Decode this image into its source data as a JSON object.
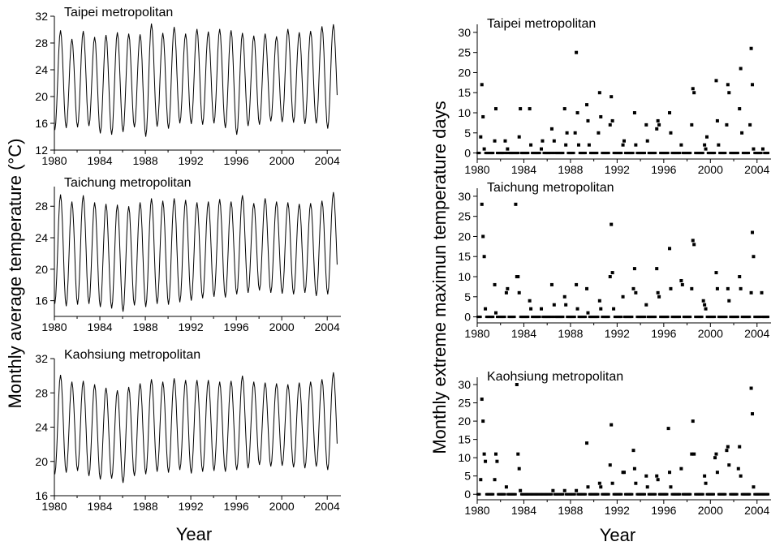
{
  "figure": {
    "left_ylabel": "Monthly average temperature (°C)",
    "right_ylabel": "Monthly extreme maximun temperature days",
    "left_xlabel": "Year",
    "right_xlabel": "Year"
  },
  "chart_data": [
    {
      "type": "line",
      "title": "Taipei metropolitan",
      "xlabel": "Year",
      "ylabel": "Monthly average temperature (°C)",
      "xlim": [
        1980,
        2005.2
      ],
      "ylim": [
        12,
        32
      ],
      "xticks": [
        1980,
        1984,
        1988,
        1992,
        1996,
        2000,
        2004
      ],
      "yticks": [
        12,
        16,
        20,
        24,
        28,
        32
      ],
      "series": [
        {
          "values_description_free": true,
          "annual_summer_peaks": [
            29.9,
            28.6,
            29.8,
            28.9,
            29.2,
            29.6,
            29.4,
            29.3,
            30.9,
            29.5,
            30.4,
            29.4,
            30.1,
            29.7,
            30.1,
            29.9,
            29.5,
            29.1,
            29.4,
            29.0,
            30.1,
            29.6,
            29.8,
            30.5,
            30.8,
            29.7
          ],
          "annual_winter_lows": [
            15.0,
            15.3,
            15.4,
            15.6,
            14.5,
            14.3,
            14.7,
            15.4,
            14.0,
            15.5,
            15.2,
            16.0,
            15.9,
            15.8,
            16.0,
            15.3,
            14.3,
            15.6,
            15.8,
            16.3,
            16.2,
            16.1,
            15.9,
            16.0,
            15.2,
            16.7
          ]
        }
      ]
    },
    {
      "type": "line",
      "title": "Taichung metropolitan",
      "xlabel": "Year",
      "ylabel": "Monthly average temperature (°C)",
      "xlim": [
        1980,
        2005.2
      ],
      "ylim": [
        14,
        30.5
      ],
      "xticks": [
        1980,
        1984,
        1988,
        1992,
        1996,
        2000,
        2004
      ],
      "yticks": [
        16,
        20,
        24,
        28
      ],
      "series": [
        {
          "annual_summer_peaks": [
            29.5,
            28.6,
            29.4,
            28.5,
            28.3,
            28.2,
            28.0,
            28.5,
            29.0,
            28.7,
            29.0,
            28.8,
            28.5,
            28.6,
            28.9,
            28.6,
            29.4,
            28.4,
            29.0,
            28.6,
            28.5,
            28.3,
            28.4,
            28.7,
            29.8,
            29.0
          ],
          "annual_winter_lows": [
            15.6,
            15.3,
            15.5,
            15.6,
            15.2,
            15.0,
            14.6,
            15.4,
            15.2,
            15.6,
            15.5,
            15.8,
            16.0,
            16.3,
            16.5,
            16.4,
            16.8,
            17.0,
            17.3,
            17.0,
            16.9,
            16.8,
            17.0,
            16.6,
            16.8,
            17.5
          ]
        }
      ]
    },
    {
      "type": "line",
      "title": "Kaohsiung metropolitan",
      "xlabel": "Year",
      "ylabel": "Monthly average temperature (°C)",
      "xlim": [
        1980,
        2005.2
      ],
      "ylim": [
        16,
        32
      ],
      "xticks": [
        1980,
        1984,
        1988,
        1992,
        1996,
        2000,
        2004
      ],
      "yticks": [
        16,
        20,
        24,
        28,
        32
      ],
      "series": [
        {
          "annual_summer_peaks": [
            30.1,
            29.3,
            29.4,
            29.0,
            28.6,
            28.3,
            28.7,
            29.1,
            29.6,
            29.3,
            29.7,
            29.5,
            29.5,
            29.5,
            29.3,
            29.4,
            30.0,
            29.3,
            29.2,
            29.1,
            29.0,
            29.2,
            29.3,
            29.6,
            30.4,
            29.0
          ],
          "annual_winter_lows": [
            18.5,
            18.7,
            18.9,
            18.3,
            17.9,
            18.0,
            17.5,
            18.3,
            18.5,
            18.8,
            18.7,
            19.0,
            18.6,
            18.8,
            18.9,
            18.8,
            19.0,
            19.2,
            19.6,
            19.4,
            19.5,
            19.3,
            19.2,
            19.4,
            19.0,
            19.3
          ]
        }
      ]
    },
    {
      "type": "scatter",
      "title": "Taipei metropolitan",
      "xlabel": "Year",
      "ylabel": "Monthly extreme maximun temperature days",
      "xlim": [
        1980,
        2005.2
      ],
      "ylim": [
        -1.5,
        32
      ],
      "xticks": [
        1980,
        1984,
        1988,
        1992,
        1996,
        2000,
        2004
      ],
      "yticks": [
        0,
        5,
        10,
        15,
        20,
        25,
        30
      ],
      "series": [
        {
          "points": [
            [
              1980.3,
              4
            ],
            [
              1980.4,
              17
            ],
            [
              1980.5,
              9
            ],
            [
              1980.6,
              1
            ],
            [
              1981.5,
              3
            ],
            [
              1981.6,
              11
            ],
            [
              1982.4,
              3
            ],
            [
              1982.6,
              1
            ],
            [
              1983.6,
              4
            ],
            [
              1983.7,
              11
            ],
            [
              1984.5,
              11
            ],
            [
              1984.6,
              2
            ],
            [
              1985.5,
              1
            ],
            [
              1985.6,
              3
            ],
            [
              1986.4,
              6
            ],
            [
              1986.6,
              3
            ],
            [
              1987.5,
              11
            ],
            [
              1987.6,
              2
            ],
            [
              1987.7,
              5
            ],
            [
              1988.4,
              5
            ],
            [
              1988.5,
              25
            ],
            [
              1988.6,
              10
            ],
            [
              1988.7,
              2
            ],
            [
              1989.4,
              12
            ],
            [
              1989.5,
              8
            ],
            [
              1989.6,
              2
            ],
            [
              1990.4,
              5
            ],
            [
              1990.5,
              15
            ],
            [
              1990.6,
              9
            ],
            [
              1991.4,
              7
            ],
            [
              1991.5,
              14
            ],
            [
              1991.6,
              8
            ],
            [
              1992.5,
              2
            ],
            [
              1992.6,
              3
            ],
            [
              1993.5,
              10
            ],
            [
              1993.6,
              2
            ],
            [
              1994.5,
              7
            ],
            [
              1994.6,
              3
            ],
            [
              1995.4,
              6
            ],
            [
              1995.5,
              8
            ],
            [
              1995.6,
              7
            ],
            [
              1996.5,
              10
            ],
            [
              1996.6,
              5
            ],
            [
              1997.5,
              2
            ],
            [
              1998.4,
              7
            ],
            [
              1998.5,
              16
            ],
            [
              1998.6,
              15
            ],
            [
              1999.5,
              2
            ],
            [
              1999.6,
              1
            ],
            [
              1999.7,
              4
            ],
            [
              2000.5,
              18
            ],
            [
              2000.6,
              8
            ],
            [
              2000.7,
              2
            ],
            [
              2001.4,
              7
            ],
            [
              2001.5,
              17
            ],
            [
              2001.6,
              15
            ],
            [
              2002.5,
              11
            ],
            [
              2002.6,
              21
            ],
            [
              2002.7,
              5
            ],
            [
              2003.4,
              7
            ],
            [
              2003.5,
              26
            ],
            [
              2003.6,
              17
            ],
            [
              2003.7,
              1
            ],
            [
              2004.5,
              1
            ]
          ]
        }
      ]
    },
    {
      "type": "scatter",
      "title": "Taichung metropolitan",
      "xlabel": "Year",
      "ylabel": "Monthly extreme maximun temperature days",
      "xlim": [
        1980,
        2005.2
      ],
      "ylim": [
        -1.5,
        32
      ],
      "xticks": [
        1980,
        1984,
        1988,
        1992,
        1996,
        2000,
        2004
      ],
      "yticks": [
        0,
        5,
        10,
        15,
        20,
        25,
        30
      ],
      "series": [
        {
          "points": [
            [
              1980.4,
              28
            ],
            [
              1980.5,
              20
            ],
            [
              1980.6,
              15
            ],
            [
              1980.7,
              2
            ],
            [
              1981.5,
              8
            ],
            [
              1981.6,
              1
            ],
            [
              1982.5,
              6
            ],
            [
              1982.6,
              7
            ],
            [
              1983.3,
              28
            ],
            [
              1983.4,
              10
            ],
            [
              1983.5,
              10
            ],
            [
              1983.6,
              6
            ],
            [
              1984.5,
              4
            ],
            [
              1984.6,
              2
            ],
            [
              1985.5,
              2
            ],
            [
              1986.4,
              8
            ],
            [
              1986.6,
              3
            ],
            [
              1987.5,
              5
            ],
            [
              1987.6,
              3
            ],
            [
              1988.5,
              8
            ],
            [
              1988.6,
              2
            ],
            [
              1989.4,
              7
            ],
            [
              1989.5,
              1
            ],
            [
              1990.5,
              4
            ],
            [
              1990.6,
              2
            ],
            [
              1991.4,
              10
            ],
            [
              1991.5,
              23
            ],
            [
              1991.6,
              11
            ],
            [
              1991.7,
              2
            ],
            [
              1992.5,
              5
            ],
            [
              1993.4,
              7
            ],
            [
              1993.5,
              12
            ],
            [
              1993.6,
              6
            ],
            [
              1994.5,
              3
            ],
            [
              1995.4,
              12
            ],
            [
              1995.5,
              6
            ],
            [
              1995.6,
              5
            ],
            [
              1996.5,
              17
            ],
            [
              1996.6,
              7
            ],
            [
              1997.5,
              9
            ],
            [
              1997.6,
              8
            ],
            [
              1998.4,
              7
            ],
            [
              1998.5,
              19
            ],
            [
              1998.6,
              18
            ],
            [
              1999.4,
              4
            ],
            [
              1999.5,
              3
            ],
            [
              1999.6,
              2
            ],
            [
              2000.5,
              11
            ],
            [
              2000.6,
              7
            ],
            [
              2001.5,
              7
            ],
            [
              2001.6,
              4
            ],
            [
              2002.5,
              10
            ],
            [
              2002.6,
              7
            ],
            [
              2003.5,
              6
            ],
            [
              2003.6,
              21
            ],
            [
              2003.7,
              15
            ],
            [
              2004.4,
              6
            ]
          ]
        }
      ]
    },
    {
      "type": "scatter",
      "title": "Kaohsiung metropolitan",
      "xlabel": "Year",
      "ylabel": "Monthly extreme maximun temperature days",
      "xlim": [
        1980,
        2005.2
      ],
      "ylim": [
        -1.5,
        32
      ],
      "xticks": [
        1980,
        1984,
        1988,
        1992,
        1996,
        2000,
        2004
      ],
      "yticks": [
        0,
        5,
        10,
        15,
        20,
        25,
        30
      ],
      "series": [
        {
          "points": [
            [
              1980.3,
              4
            ],
            [
              1980.4,
              26
            ],
            [
              1980.5,
              20
            ],
            [
              1980.6,
              11
            ],
            [
              1980.7,
              9
            ],
            [
              1981.5,
              4
            ],
            [
              1981.6,
              11
            ],
            [
              1981.7,
              9
            ],
            [
              1982.5,
              2
            ],
            [
              1983.4,
              30
            ],
            [
              1983.5,
              11
            ],
            [
              1983.6,
              7
            ],
            [
              1983.7,
              1
            ],
            [
              1986.5,
              1
            ],
            [
              1987.5,
              1
            ],
            [
              1988.5,
              1
            ],
            [
              1989.4,
              14
            ],
            [
              1989.5,
              2
            ],
            [
              1990.5,
              3
            ],
            [
              1990.6,
              2
            ],
            [
              1991.4,
              8
            ],
            [
              1991.5,
              19
            ],
            [
              1991.6,
              3
            ],
            [
              1992.5,
              6
            ],
            [
              1992.6,
              6
            ],
            [
              1993.4,
              12
            ],
            [
              1993.5,
              7
            ],
            [
              1993.6,
              3
            ],
            [
              1994.5,
              5
            ],
            [
              1994.6,
              2
            ],
            [
              1995.4,
              5
            ],
            [
              1995.5,
              4
            ],
            [
              1996.4,
              18
            ],
            [
              1996.5,
              6
            ],
            [
              1996.6,
              2
            ],
            [
              1997.5,
              7
            ],
            [
              1998.4,
              11
            ],
            [
              1998.5,
              20
            ],
            [
              1998.6,
              11
            ],
            [
              1999.5,
              5
            ],
            [
              1999.6,
              3
            ],
            [
              2000.4,
              10
            ],
            [
              2000.5,
              11
            ],
            [
              2000.6,
              6
            ],
            [
              2001.4,
              12
            ],
            [
              2001.5,
              13
            ],
            [
              2001.6,
              8
            ],
            [
              2002.4,
              7
            ],
            [
              2002.5,
              13
            ],
            [
              2002.6,
              5
            ],
            [
              2003.5,
              29
            ],
            [
              2003.6,
              22
            ],
            [
              2003.7,
              2
            ]
          ]
        }
      ]
    }
  ]
}
